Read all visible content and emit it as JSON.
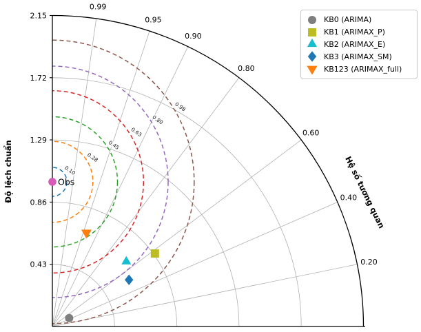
{
  "chart_data": {
    "type": "scatter",
    "subtype": "taylor-diagram",
    "title": "",
    "radial_axis": {
      "title": "Độ lệch chuẩn",
      "tick_labels": [
        "2.15",
        "1.72",
        "1.29",
        "0.86",
        "0.43"
      ],
      "tick_values": [
        2.15,
        1.72,
        1.29,
        0.86,
        0.43
      ],
      "max": 2.15
    },
    "angular_axis": {
      "title": "Hệ số tương quan",
      "tick_labels": [
        "0.99",
        "0.95",
        "0.90",
        "0.80",
        "0.60",
        "0.40",
        "0.20"
      ],
      "tick_values": [
        0.99,
        0.95,
        0.9,
        0.8,
        0.6,
        0.4,
        0.2
      ]
    },
    "grid": {
      "std_circle_values": [
        0.43,
        0.86,
        1.29,
        1.72
      ],
      "outer_boundary": 2.15,
      "grid_color": "#b0b0b0",
      "spine_color": "#000000"
    },
    "reference": {
      "label": "Obs",
      "std": 1.0,
      "corr": 1.0,
      "marker": "circle",
      "color": "#d45cb7"
    },
    "rms_contours": [
      {
        "label": "0.10",
        "value": 0.1,
        "color": "#1f77b4"
      },
      {
        "label": "0.28",
        "value": 0.28,
        "color": "#ff7f0e"
      },
      {
        "label": "0.45",
        "value": 0.45,
        "color": "#2ca02c"
      },
      {
        "label": "0.63",
        "value": 0.63,
        "color": "#d62728"
      },
      {
        "label": "0.80",
        "value": 0.8,
        "color": "#9467bd"
      },
      {
        "label": "0.98",
        "value": 0.98,
        "color": "#8c564b"
      }
    ],
    "series": [
      {
        "name": "KB0 (ARIMA)",
        "std": 0.13,
        "corr": 0.45,
        "marker": "circle",
        "color": "#7f7f7f"
      },
      {
        "name": "KB1 (ARIMAX_P)",
        "std": 0.87,
        "corr": 0.58,
        "marker": "square",
        "color": "#bcbd22"
      },
      {
        "name": "KB2 (ARIMAX_E)",
        "std": 0.68,
        "corr": 0.66,
        "marker": "triangle-up",
        "color": "#17becf"
      },
      {
        "name": "KB3 (ARIMAX_SM)",
        "std": 0.62,
        "corr": 0.52,
        "marker": "diamond",
        "color": "#1f77b4"
      },
      {
        "name": "KB123 (ARIMAX_full)",
        "std": 0.69,
        "corr": 0.94,
        "marker": "triangle-down",
        "color": "#ff7f0e"
      }
    ],
    "legend": {
      "position": "top-right"
    }
  }
}
